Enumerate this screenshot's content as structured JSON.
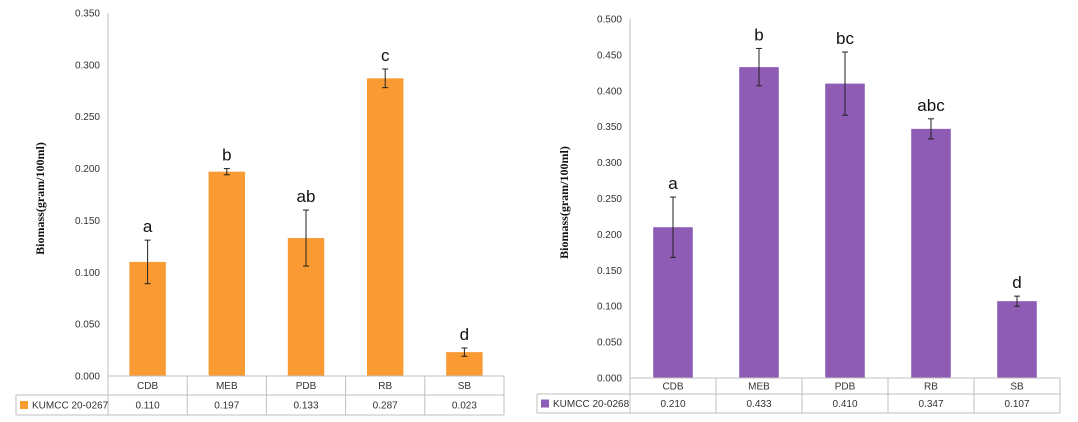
{
  "chart_data": [
    {
      "type": "bar",
      "title": "",
      "ylabel": "Biomass(gram/100ml)",
      "xlabel": "",
      "ylim": [
        0,
        0.35
      ],
      "yticks": [
        "0.000",
        "0.050",
        "0.100",
        "0.150",
        "0.200",
        "0.250",
        "0.300",
        "0.350"
      ],
      "categories": [
        "CDB",
        "MEB",
        "PDB",
        "RB",
        "SB"
      ],
      "color": "#F99A32",
      "grid": false,
      "series": [
        {
          "name": "KUMCC 20-0267",
          "values": [
            0.11,
            0.197,
            0.133,
            0.287,
            0.023
          ],
          "value_labels": [
            "0.110",
            "0.197",
            "0.133",
            "0.287",
            "0.023"
          ],
          "errors": [
            0.021,
            0.003,
            0.027,
            0.009,
            0.004
          ]
        }
      ],
      "annotations": [
        "a",
        "b",
        "ab",
        "c",
        "d"
      ]
    },
    {
      "type": "bar",
      "title": "",
      "ylabel": "Biomass(gram/100ml)",
      "xlabel": "",
      "ylim": [
        0,
        0.5
      ],
      "yticks": [
        "0.000",
        "0.050",
        "0.100",
        "0.150",
        "0.200",
        "0.250",
        "0.300",
        "0.350",
        "0.400",
        "0.450",
        "0.500"
      ],
      "categories": [
        "CDB",
        "MEB",
        "PDB",
        "RB",
        "SB"
      ],
      "color": "#8E5BB5",
      "grid": false,
      "series": [
        {
          "name": "KUMCC 20-0268",
          "values": [
            0.21,
            0.433,
            0.41,
            0.347,
            0.107
          ],
          "value_labels": [
            "0.210",
            "0.433",
            "0.410",
            "0.347",
            "0.107"
          ],
          "errors": [
            0.042,
            0.026,
            0.044,
            0.014,
            0.007
          ]
        }
      ],
      "annotations": [
        "a",
        "b",
        "bc",
        "abc",
        "d"
      ]
    }
  ]
}
